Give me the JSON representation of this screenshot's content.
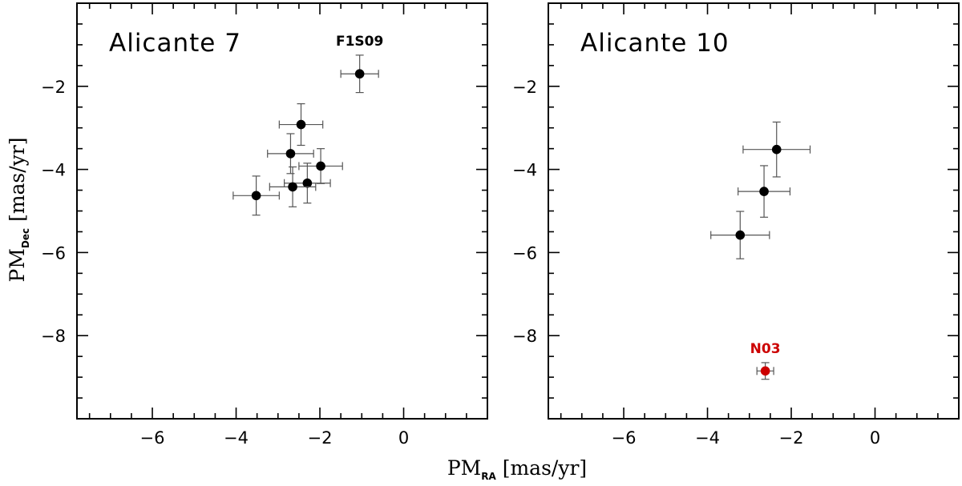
{
  "chart_data": [
    {
      "type": "scatter",
      "title": "Alicante 7",
      "xlabel": "PM_RA [mas/yr]",
      "ylabel": "PM_Dec [mas/yr]",
      "xlim": [
        -7.8,
        2.0
      ],
      "ylim": [
        -10.0,
        0.0
      ],
      "xticks": [
        -6,
        -4,
        -2,
        0
      ],
      "yticks": [
        -2,
        -4,
        -6,
        -8
      ],
      "points": [
        {
          "x": -1.05,
          "y": -1.7,
          "xerr": 0.45,
          "yerr": 0.45,
          "color": "#000000",
          "label": "F1S09"
        },
        {
          "x": -2.45,
          "y": -2.92,
          "xerr": 0.52,
          "yerr": 0.5,
          "color": "#000000"
        },
        {
          "x": -2.7,
          "y": -3.62,
          "xerr": 0.55,
          "yerr": 0.48,
          "color": "#000000"
        },
        {
          "x": -1.98,
          "y": -3.92,
          "xerr": 0.52,
          "yerr": 0.42,
          "color": "#000000"
        },
        {
          "x": -2.3,
          "y": -4.33,
          "xerr": 0.55,
          "yerr": 0.48,
          "color": "#000000"
        },
        {
          "x": -2.65,
          "y": -4.42,
          "xerr": 0.55,
          "yerr": 0.48,
          "color": "#000000"
        },
        {
          "x": -3.52,
          "y": -4.63,
          "xerr": 0.55,
          "yerr": 0.47,
          "color": "#000000"
        }
      ]
    },
    {
      "type": "scatter",
      "title": "Alicante 10",
      "xlabel": "PM_RA [mas/yr]",
      "ylabel": "PM_Dec [mas/yr]",
      "xlim": [
        -7.8,
        2.0
      ],
      "ylim": [
        -10.0,
        0.0
      ],
      "xticks": [
        -6,
        -4,
        -2,
        0
      ],
      "yticks": [
        -2,
        -4,
        -6,
        -8
      ],
      "points": [
        {
          "x": -2.35,
          "y": -3.52,
          "xerr": 0.8,
          "yerr": 0.66,
          "color": "#000000"
        },
        {
          "x": -2.65,
          "y": -4.53,
          "xerr": 0.62,
          "yerr": 0.62,
          "color": "#000000"
        },
        {
          "x": -3.22,
          "y": -5.58,
          "xerr": 0.7,
          "yerr": 0.57,
          "color": "#000000"
        },
        {
          "x": -2.62,
          "y": -8.85,
          "xerr": 0.2,
          "yerr": 0.2,
          "color": "#cc0000",
          "label": "N03"
        }
      ]
    }
  ],
  "axis_labels": {
    "x_main": "PM",
    "x_sub": "RA",
    "x_unit": " [mas/yr]",
    "y_main": "PM",
    "y_sub": "Dec",
    "y_unit": " [mas/yr]"
  }
}
